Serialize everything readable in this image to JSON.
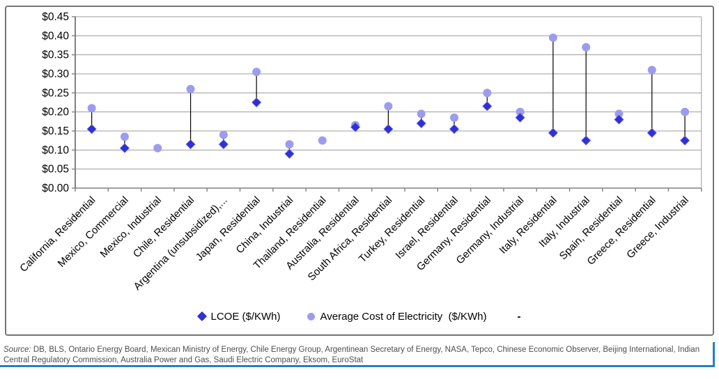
{
  "chart_data": {
    "type": "scatter",
    "title": "",
    "xlabel": "",
    "ylabel": "",
    "ylim": [
      0,
      0.45
    ],
    "ytick_step": 0.05,
    "ytick_labels": [
      "$0.00",
      "$0.05",
      "$0.10",
      "$0.15",
      "$0.20",
      "$0.25",
      "$0.30",
      "$0.35",
      "$0.40",
      "$0.45"
    ],
    "grid": true,
    "legend_position": "bottom",
    "connectors": "vertical black line joins LCOE diamond and Average Cost circle per category",
    "categories": [
      "California, Residential",
      "Mexico, Commercial",
      "Mexico, Industrial",
      "Chile, Residential",
      "Argentina (unsubsidized),...",
      "Japan, Residential",
      "China, Industrial",
      "Thailand, Residential",
      "Australia, Residential",
      "South Africa, Residential",
      "Turkey, Residential",
      "Israel, Residential",
      "Germany, Residential",
      "Germany, Industrial",
      "Italy, Residential",
      "Italy, Industrial",
      "Spain, Residential",
      "Greece, Residential",
      "Greece, Industrial"
    ],
    "series": [
      {
        "name": "LCOE ($/KWh)",
        "marker": "diamond",
        "color": "#3030d6",
        "values": [
          0.155,
          0.105,
          null,
          0.115,
          0.115,
          0.225,
          0.09,
          null,
          0.16,
          0.155,
          0.17,
          0.155,
          0.215,
          0.185,
          0.145,
          0.125,
          0.18,
          0.145,
          0.125
        ]
      },
      {
        "name": "Average Cost of Electricity  ($/KWh)",
        "marker": "circle",
        "color": "#9c9cee",
        "values": [
          0.21,
          0.135,
          0.105,
          0.26,
          0.14,
          0.305,
          0.115,
          0.125,
          0.165,
          0.215,
          0.195,
          0.185,
          0.25,
          0.2,
          0.395,
          0.37,
          0.195,
          0.31,
          0.2
        ]
      }
    ]
  },
  "legend": {
    "extra_dash": "-"
  },
  "source": {
    "prefix": "Source:",
    "body": " DB, BLS, Ontario Energy Board, Mexican Ministry of Energy, Chile Energy Group, Argentinean Secretary of Energy, NASA, Tepco, Chinese Economic Observer, Beijing International, Indian Central Regulatory Commission, Australia Power and Gas, Saudi Electric Company, Eksom, EuroStat"
  },
  "colors": {
    "lcoe_marker": "#3030d6",
    "avg_marker": "#9c9cee",
    "connector": "#000000",
    "gridline": "#9c9c9c",
    "axis": "#808080",
    "frame_border": "#747474",
    "accent_rule": "#2181c4",
    "source_text": "#4d4d4d"
  }
}
